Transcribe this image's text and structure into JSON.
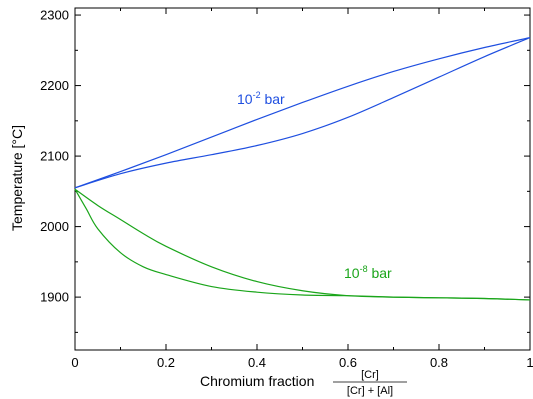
{
  "chart_data": {
    "type": "line",
    "xlabel": "Chromium fraction",
    "xlabel_fraction": {
      "numerator": "[Cr]",
      "denominator": "[Cr] + [Al]"
    },
    "ylabel": "Temperature [°C]",
    "xlim": [
      0,
      1
    ],
    "ylim": [
      1825,
      2310
    ],
    "x_ticks": [
      0,
      0.2,
      0.4,
      0.6,
      0.8,
      1
    ],
    "x_tick_labels": [
      "0",
      "0.2",
      "0.4",
      "0.6",
      "0.8",
      "1"
    ],
    "y_ticks": [
      1900,
      2000,
      2100,
      2200,
      2300
    ],
    "y_tick_labels": [
      "1900",
      "2000",
      "2100",
      "2200",
      "2300"
    ],
    "grid": false,
    "series": [
      {
        "label_base": "10",
        "label_exp": "-2",
        "label_unit": " bar",
        "color": "#1f4fe0",
        "curves": [
          {
            "x": [
              0,
              0.1,
              0.2,
              0.3,
              0.4,
              0.5,
              0.6,
              0.7,
              0.8,
              0.9,
              1.0
            ],
            "y": [
              2055,
              2078,
              2102,
              2127,
              2152,
              2176,
              2199,
              2220,
              2238,
              2254,
              2268
            ]
          },
          {
            "x": [
              0,
              0.1,
              0.2,
              0.3,
              0.4,
              0.5,
              0.6,
              0.7,
              0.8,
              0.9,
              1.0
            ],
            "y": [
              2055,
              2075,
              2090,
              2102,
              2115,
              2132,
              2155,
              2183,
              2212,
              2241,
              2268
            ]
          }
        ]
      },
      {
        "label_base": "10",
        "label_exp": "-8",
        "label_unit": " bar",
        "color": "#1aa51a",
        "curves": [
          {
            "x": [
              0,
              0.05,
              0.1,
              0.15,
              0.2,
              0.3,
              0.4,
              0.5,
              0.6,
              0.7,
              0.8,
              0.9,
              1.0
            ],
            "y": [
              2053,
              2030,
              2010,
              1990,
              1972,
              1943,
              1922,
              1909,
              1902,
              1900,
              1899,
              1898,
              1896
            ]
          },
          {
            "x": [
              0,
              0.025,
              0.05,
              0.1,
              0.15,
              0.2,
              0.3,
              0.4,
              0.5,
              0.6,
              0.7,
              0.8,
              0.9,
              1.0
            ],
            "y": [
              2053,
              2025,
              1997,
              1963,
              1943,
              1932,
              1915,
              1907,
              1903,
              1902,
              1900,
              1899,
              1898,
              1896
            ]
          }
        ]
      }
    ]
  }
}
